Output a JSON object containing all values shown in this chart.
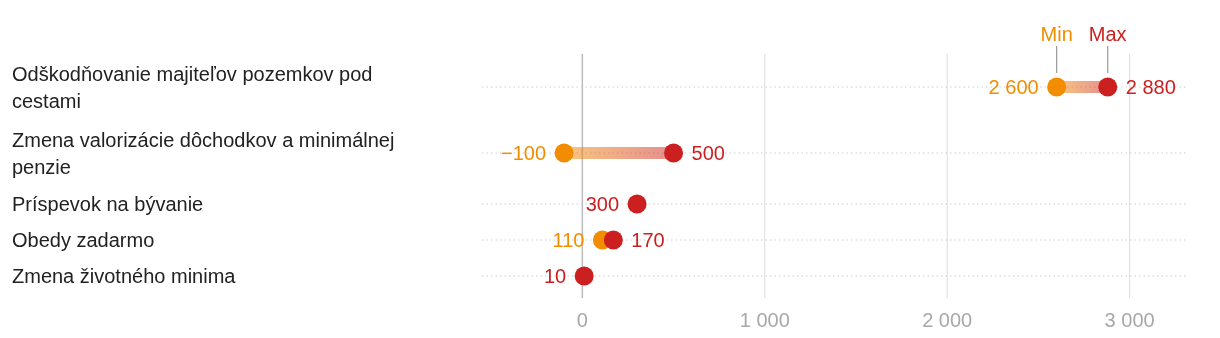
{
  "chart_data": {
    "type": "scatter",
    "orientation": "horizontal",
    "categories": [
      "Odškodňovanie majiteľov pozemkov pod cestami",
      "Zmena valorizácie dôchodkov a minimálnej penzie",
      "Príspevok na bývanie",
      "Obedy zadarmo",
      "Zmena životného minima"
    ],
    "series": [
      {
        "name": "Min",
        "color": "#f28c00",
        "values": [
          2600,
          -100,
          null,
          110,
          null
        ]
      },
      {
        "name": "Max",
        "color": "#cc1f1f",
        "values": [
          2880,
          500,
          300,
          170,
          10
        ]
      }
    ],
    "xlim": [
      -550,
      3320
    ],
    "xticks": [
      0,
      {
        "value": 1000,
        "label": "1 000"
      },
      {
        "value": 2000,
        "label": "2 000"
      },
      {
        "value": 3000,
        "label": "3 000"
      }
    ],
    "grid": "x",
    "legend": "top right",
    "data_labels": true,
    "marker": "circle"
  }
}
